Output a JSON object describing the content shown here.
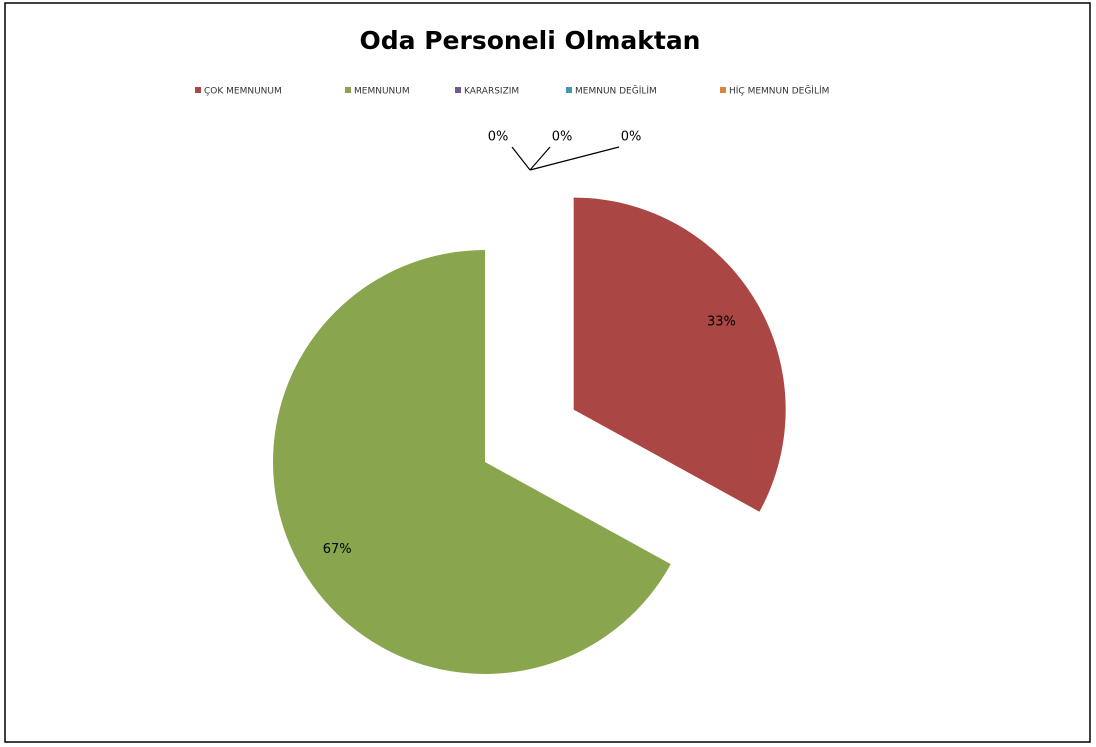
{
  "chart_data": {
    "type": "pie",
    "title": "Oda Personeli Olmaktan",
    "categories": [
      "ÇOK MEMNUNUM",
      "MEMNUNUM",
      "KARARSIZIM",
      "MEMNUN DEĞİLİM",
      "HİÇ MEMNUN DEĞİLİM"
    ],
    "values": [
      33,
      67,
      0,
      0,
      0
    ],
    "value_labels": [
      "33%",
      "67%",
      "0%",
      "0%",
      "0%"
    ],
    "colors": [
      "#aa4643",
      "#89a54e",
      "#71588f",
      "#4198af",
      "#db843d"
    ],
    "legend": "top"
  }
}
